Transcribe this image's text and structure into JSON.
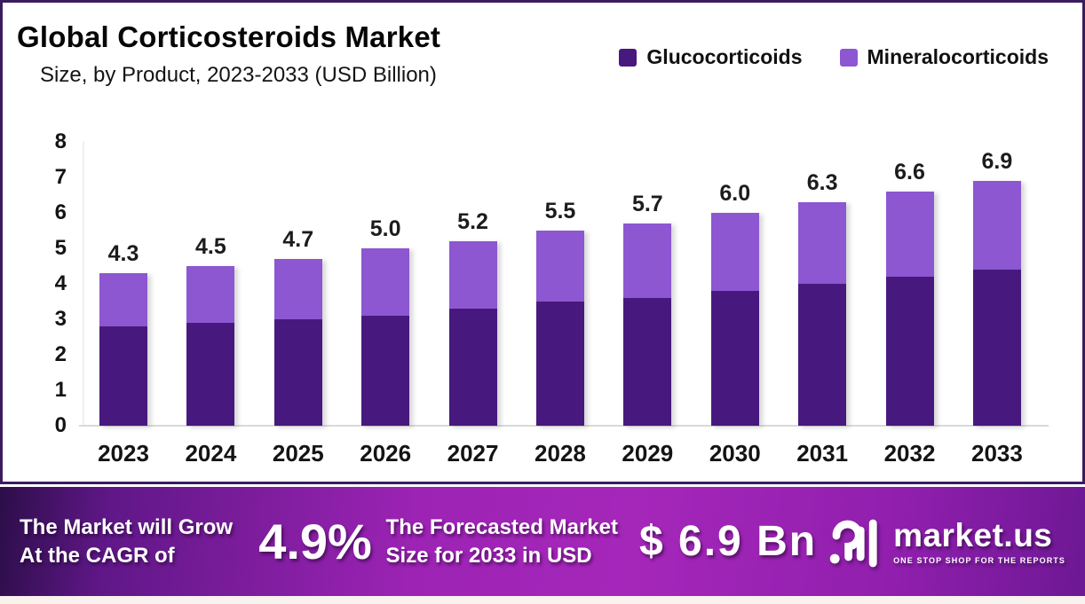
{
  "header": {
    "title": "Global Corticosteroids Market",
    "subtitle": "Size, by Product, 2023-2033 (USD Billion)"
  },
  "legend": {
    "items": [
      {
        "label": "Glucocorticoids",
        "color": "#47197e"
      },
      {
        "label": "Mineralocorticoids",
        "color": "#8c57d1"
      }
    ]
  },
  "chart_data": {
    "type": "bar",
    "stacked": true,
    "title": "Global Corticosteroids Market Size, by Product, 2023-2033 (USD Billion)",
    "categories": [
      "2023",
      "2024",
      "2025",
      "2026",
      "2027",
      "2028",
      "2029",
      "2030",
      "2031",
      "2032",
      "2033"
    ],
    "series": [
      {
        "name": "Glucocorticoids",
        "color": "#47197e",
        "values": [
          2.8,
          2.9,
          3.0,
          3.1,
          3.3,
          3.5,
          3.6,
          3.8,
          4.0,
          4.2,
          4.4
        ]
      },
      {
        "name": "Mineralocorticoids",
        "color": "#8c57d1",
        "values": [
          1.5,
          1.6,
          1.7,
          1.9,
          1.9,
          2.0,
          2.1,
          2.2,
          2.3,
          2.4,
          2.5
        ]
      }
    ],
    "totals": [
      4.3,
      4.5,
      4.7,
      5.0,
      5.2,
      5.5,
      5.7,
      6.0,
      6.3,
      6.6,
      6.9
    ],
    "total_labels": [
      "4.3",
      "4.5",
      "4.7",
      "5.0",
      "5.2",
      "5.5",
      "5.7",
      "6.0",
      "6.3",
      "6.6",
      "6.9"
    ],
    "xlabel": "",
    "ylabel": "",
    "ylim": [
      0,
      8
    ],
    "yticks": [
      0,
      1,
      2,
      3,
      4,
      5,
      6,
      7,
      8
    ],
    "grid": false,
    "legend_position": "top-right",
    "unit": "USD Billion"
  },
  "banner": {
    "cagr_label_line1": "The Market will Grow",
    "cagr_label_line2": "At the CAGR of",
    "cagr_value": "4.9%",
    "forecast_label_line1": "The Forecasted Market",
    "forecast_label_line2": "Size for 2033 in USD",
    "forecast_value": "$ 6.9 Bn",
    "brand_name": "market.us",
    "brand_tagline": "ONE STOP SHOP FOR THE REPORTS",
    "gradient_left": "#2c0e49",
    "gradient_center": "#a527ba",
    "gradient_right": "#6d1894"
  }
}
